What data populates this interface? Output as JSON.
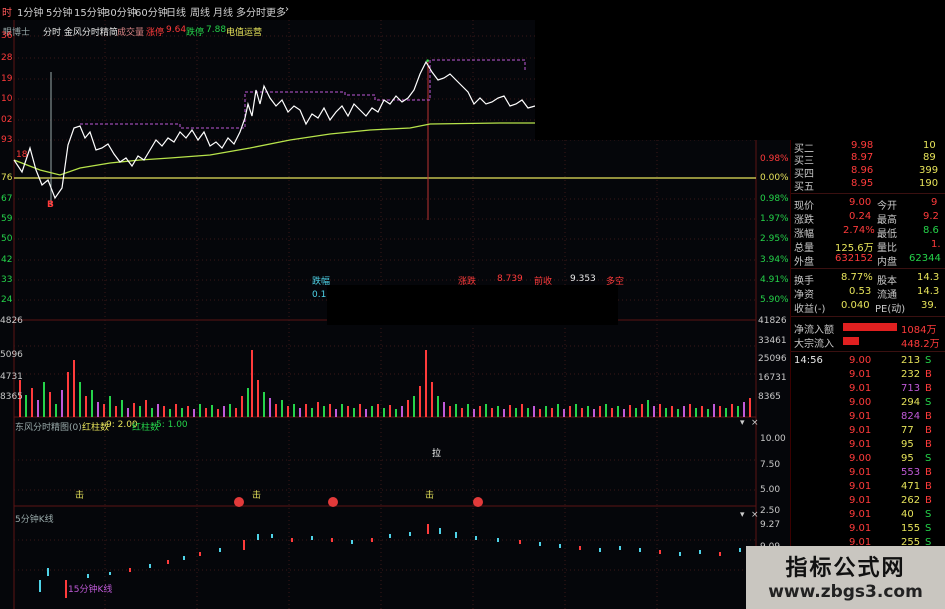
{
  "toolbar": {
    "items": [
      "时",
      "1分钟",
      "5分钟",
      "15分钟",
      "30分钟",
      "60分钟",
      "日线",
      "周线",
      "月线",
      "多分时",
      "更多"
    ],
    "more_arrow": "›"
  },
  "chart_header": {
    "fragment": "眼博士",
    "title": "分时 金风分时精简",
    "volume_label": "成交量",
    "up_label": "涨停",
    "up_value": "9.64",
    "down_label": "跌停",
    "down_value": "7.88",
    "extra": "电值运营"
  },
  "price_axis_left": [
    "36",
    "28",
    "19",
    "10",
    "02",
    "93",
    "76",
    "67",
    "59",
    "50",
    "42",
    "33",
    "24",
    "4826",
    "5096",
    "4731",
    "8365"
  ],
  "percent_axis_right": [
    "0.98%",
    "0.00%",
    "0.98%",
    "1.97%",
    "2.95%",
    "3.94%",
    "4.91%",
    "5.90%",
    "41826",
    "33461",
    "25096",
    "16731",
    "8365"
  ],
  "markers": {
    "buy": "B",
    "left_tag": "18"
  },
  "tooltip_row": {
    "label1": "跌幅",
    "value1": "0.11",
    "label2": "涨跌",
    "value2": "8.739",
    "label3": "前收",
    "value3": "9.353",
    "label4": "多空"
  },
  "indicator_panel": {
    "title": "东风分时精图(0)",
    "stat1_label": "红柱数",
    "stat1_value": "9: 2.00",
    "stat2_label": "红柱数",
    "stat2_value": "5: 1.00",
    "axis": [
      "10.00",
      "7.50",
      "5.00",
      "2.50"
    ],
    "pull_label": "拉",
    "hit_label": "击"
  },
  "kline_panel": {
    "title": "5分钟K线",
    "sub_label": "15分钟K线",
    "axis": [
      "9.27",
      "9.09"
    ]
  },
  "quote": {
    "rows_top": [
      {
        "label": "买二",
        "price": "9.98",
        "vol": "10"
      },
      {
        "label": "买三",
        "price": "8.97",
        "vol": "89"
      },
      {
        "label": "买四",
        "price": "8.96",
        "vol": "399"
      },
      {
        "label": "买五",
        "price": "8.95",
        "vol": "190"
      }
    ],
    "stats": [
      {
        "l1": "现价",
        "v1": "9.00",
        "l2": "今开",
        "v2": "9"
      },
      {
        "l1": "涨跌",
        "v1": "0.24",
        "l2": "最高",
        "v2": "9.2"
      },
      {
        "l1": "涨幅",
        "v1": "2.74%",
        "l2": "最低",
        "v2": "8.6"
      },
      {
        "l1": "总量",
        "v1": "125.6万",
        "l2": "量比",
        "v2": "1."
      },
      {
        "l1": "外盘",
        "v1": "632152",
        "l2": "内盘",
        "v2": "62344"
      }
    ],
    "stats2": [
      {
        "l1": "换手",
        "v1": "8.77%",
        "l2": "股本",
        "v2": "14.3"
      },
      {
        "l1": "净资",
        "v1": "0.53",
        "l2": "流通",
        "v2": "14.3"
      },
      {
        "l1": "收益(-)",
        "v1": "0.040",
        "l2": "PE(动)",
        "v2": "39."
      }
    ],
    "flows": [
      {
        "label": "净流入额",
        "value": "1084万"
      },
      {
        "label": "大宗流入",
        "value": "448.2万"
      }
    ],
    "ticks": [
      {
        "time": "14:56",
        "price": "9.00",
        "vol": "213",
        "side": "S"
      },
      {
        "time": "",
        "price": "9.01",
        "vol": "232",
        "side": "B"
      },
      {
        "time": "",
        "price": "9.01",
        "vol": "713",
        "side": "B"
      },
      {
        "time": "",
        "price": "9.00",
        "vol": "294",
        "side": "S"
      },
      {
        "time": "",
        "price": "9.01",
        "vol": "824",
        "side": "B"
      },
      {
        "time": "",
        "price": "9.01",
        "vol": "77",
        "side": "B"
      },
      {
        "time": "",
        "price": "9.01",
        "vol": "95",
        "side": "B"
      },
      {
        "time": "",
        "price": "9.00",
        "vol": "95",
        "side": "S"
      },
      {
        "time": "",
        "price": "9.01",
        "vol": "553",
        "side": "B"
      },
      {
        "time": "",
        "price": "9.01",
        "vol": "471",
        "side": "B"
      },
      {
        "time": "",
        "price": "9.01",
        "vol": "262",
        "side": "B"
      },
      {
        "time": "",
        "price": "9.01",
        "vol": "40",
        "side": "S"
      },
      {
        "time": "",
        "price": "9.01",
        "vol": "155",
        "side": "S"
      },
      {
        "time": "",
        "price": "9.01",
        "vol": "255",
        "side": "S"
      }
    ]
  },
  "watermark": {
    "cn": "指标公式网",
    "url": "www.zbgs3.com"
  },
  "colors": {
    "up": "#ff3b3b",
    "down": "#25d34a",
    "price_line": "#ffffff",
    "avg_line": "#b7e34a",
    "prev_close": "#e6e35a",
    "purple": "#c05ad8",
    "cyan": "#4fd3e8"
  }
}
